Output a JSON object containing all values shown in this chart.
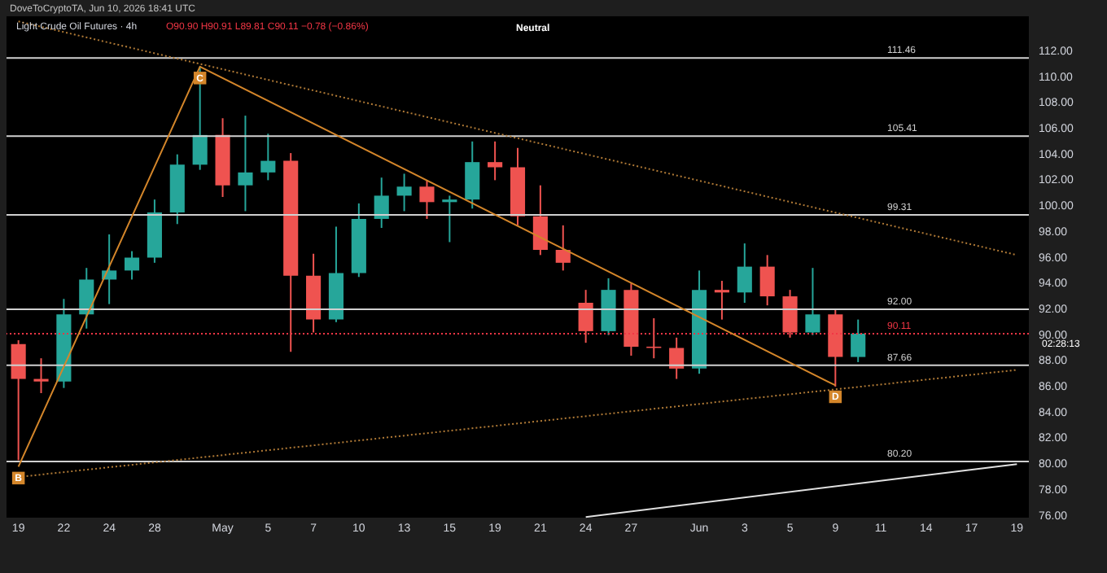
{
  "chart_data": {
    "type": "candlestick",
    "title": "Light Crude Oil Futures · 4h",
    "subtitle": "O90.90 H90.91 L89.81 C90.11 −0.78 (−0.86%)",
    "annotations": [
      "DoveToCryptoTA, Jun 10, 2026 18:41 UTC",
      "Neutral",
      "02:28:13"
    ],
    "categories": [
      "19",
      null,
      "22",
      null,
      "24",
      null,
      "28",
      null,
      null,
      "May",
      null,
      "5",
      null,
      "7",
      null,
      "10",
      null,
      "13",
      null,
      "15",
      null,
      "19",
      null,
      "21",
      null,
      "24",
      null,
      "27",
      null,
      null,
      "Jun",
      null,
      "3",
      null,
      "5",
      null,
      "9",
      null,
      "11",
      null,
      "14",
      null,
      "17",
      null,
      "19"
    ],
    "ohlc": [
      [
        89.3,
        89.6,
        80.3,
        86.6
      ],
      [
        86.6,
        88.2,
        85.5,
        86.4
      ],
      [
        86.4,
        92.8,
        85.9,
        91.6
      ],
      [
        91.6,
        95.2,
        90.5,
        94.3
      ],
      [
        94.3,
        97.8,
        92.4,
        95.0
      ],
      [
        95.0,
        96.5,
        94.3,
        96.0
      ],
      [
        96.0,
        100.5,
        95.6,
        99.5
      ],
      [
        99.5,
        104.0,
        98.6,
        103.2
      ],
      [
        103.2,
        110.8,
        102.8,
        105.5
      ],
      [
        105.5,
        106.8,
        100.7,
        101.6
      ],
      [
        101.6,
        107.0,
        99.6,
        102.6
      ],
      [
        102.6,
        105.6,
        102.0,
        103.5
      ],
      [
        103.5,
        104.1,
        88.7,
        94.6
      ],
      [
        94.6,
        96.3,
        90.2,
        91.2
      ],
      [
        91.2,
        98.4,
        91.0,
        94.8
      ],
      [
        94.8,
        100.2,
        94.5,
        99.0
      ],
      [
        99.0,
        102.2,
        98.3,
        100.8
      ],
      [
        100.8,
        102.5,
        99.6,
        101.5
      ],
      [
        101.5,
        102.0,
        99.0,
        100.3
      ],
      [
        100.3,
        100.8,
        97.2,
        100.5
      ],
      [
        100.5,
        105.0,
        99.8,
        103.4
      ],
      [
        103.4,
        105.0,
        102.0,
        103.0
      ],
      [
        103.0,
        104.5,
        98.5,
        99.2
      ],
      [
        99.2,
        101.6,
        96.2,
        96.6
      ],
      [
        96.6,
        98.5,
        95.0,
        95.6
      ],
      [
        92.5,
        93.5,
        89.4,
        90.3
      ],
      [
        90.3,
        94.4,
        90.0,
        93.5
      ],
      [
        93.5,
        94.0,
        88.4,
        89.1
      ],
      [
        89.1,
        91.3,
        88.2,
        89.0
      ],
      [
        89.0,
        89.8,
        86.6,
        87.4
      ],
      [
        87.4,
        95.0,
        87.0,
        93.5
      ],
      [
        93.5,
        94.2,
        91.2,
        93.3
      ],
      [
        93.3,
        97.1,
        92.5,
        95.3
      ],
      [
        95.3,
        96.2,
        92.3,
        93.0
      ],
      [
        93.0,
        93.5,
        89.8,
        90.2
      ],
      [
        90.2,
        95.2,
        90.0,
        91.6
      ],
      [
        91.6,
        92.0,
        86.0,
        88.3
      ],
      [
        88.3,
        91.2,
        87.9,
        90.11
      ],
      null,
      null,
      null,
      null,
      null,
      null,
      null
    ],
    "series": [
      {
        "type": "line",
        "color": "#b07a36",
        "line_style": "dotted",
        "values": [
          114.3,
          null,
          null,
          null,
          null,
          null,
          null,
          null,
          null,
          null,
          null,
          null,
          null,
          null,
          null,
          null,
          null,
          null,
          null,
          null,
          null,
          null,
          null,
          null,
          null,
          null,
          null,
          null,
          null,
          null,
          null,
          null,
          null,
          null,
          null,
          null,
          null,
          null,
          null,
          null,
          null,
          null,
          null,
          null,
          96.2
        ]
      },
      {
        "type": "line",
        "color": "#b07a36",
        "line_style": "dotted",
        "values": [
          79.0,
          null,
          null,
          null,
          null,
          null,
          null,
          null,
          null,
          null,
          null,
          null,
          null,
          null,
          null,
          null,
          null,
          null,
          null,
          null,
          null,
          null,
          null,
          null,
          null,
          null,
          null,
          null,
          null,
          null,
          null,
          null,
          null,
          null,
          null,
          null,
          null,
          null,
          null,
          null,
          null,
          null,
          null,
          null,
          87.3
        ]
      },
      {
        "type": "line",
        "color": "#d4862a",
        "line_style": "solid",
        "values": [
          79.8,
          null,
          null,
          null,
          null,
          null,
          null,
          null,
          110.8,
          null,
          null,
          null,
          null,
          null,
          null,
          null,
          null,
          null,
          null,
          null,
          null,
          null,
          null,
          null,
          null,
          null,
          null,
          null,
          null,
          null,
          null,
          null,
          null,
          null,
          null,
          null,
          86.1,
          null,
          null,
          null,
          null,
          null,
          null,
          null,
          null
        ],
        "value_labels": [
          "B",
          null,
          null,
          null,
          null,
          null,
          null,
          null,
          "C",
          null,
          null,
          null,
          null,
          null,
          null,
          null,
          null,
          null,
          null,
          null,
          null,
          null,
          null,
          null,
          null,
          null,
          null,
          null,
          null,
          null,
          null,
          null,
          null,
          null,
          null,
          null,
          "D",
          null,
          null,
          null,
          null,
          null,
          null,
          null,
          null
        ]
      },
      {
        "type": "line",
        "color": "#e0e0e0",
        "line_style": "solid",
        "values": [
          null,
          null,
          null,
          null,
          null,
          null,
          null,
          null,
          null,
          null,
          null,
          null,
          null,
          null,
          null,
          null,
          null,
          null,
          null,
          null,
          null,
          null,
          null,
          null,
          null,
          75.9,
          null,
          null,
          null,
          null,
          null,
          null,
          null,
          null,
          null,
          null,
          null,
          null,
          null,
          null,
          null,
          null,
          null,
          null,
          80.0
        ]
      }
    ],
    "ref_lines": [
      {
        "axis": "y",
        "value": 111.46,
        "label": "111.46",
        "color": "#d0d0d0"
      },
      {
        "axis": "y",
        "value": 105.41,
        "label": "105.41",
        "color": "#d0d0d0"
      },
      {
        "axis": "y",
        "value": 99.31,
        "label": "99.31",
        "color": "#d0d0d0"
      },
      {
        "axis": "y",
        "value": 92.0,
        "label": "92.00",
        "color": "#d0d0d0"
      },
      {
        "axis": "y",
        "value": 87.66,
        "label": "87.66",
        "color": "#d0d0d0"
      },
      {
        "axis": "y",
        "value": 80.2,
        "label": "80.20",
        "color": "#d0d0d0"
      },
      {
        "axis": "y",
        "value": 90.11,
        "label": "90.11",
        "color": "#f23645",
        "line_style": "dotted"
      }
    ],
    "ylim": [
      75.85,
      114.7
    ],
    "yticks": [
      {
        "value": 76,
        "label": "76.00"
      },
      {
        "value": 78,
        "label": "78.00"
      },
      {
        "value": 80,
        "label": "80.00"
      },
      {
        "value": 82,
        "label": "82.00"
      },
      {
        "value": 84,
        "label": "84.00"
      },
      {
        "value": 86,
        "label": "86.00"
      },
      {
        "value": 88,
        "label": "88.00"
      },
      {
        "value": 90,
        "label": "90.00"
      },
      {
        "value": 92,
        "label": "92.00"
      },
      {
        "value": 94,
        "label": "94.00"
      },
      {
        "value": 96,
        "label": "96.00"
      },
      {
        "value": 98,
        "label": "98.00"
      },
      {
        "value": 100,
        "label": "100.00"
      },
      {
        "value": 102,
        "label": "102.00"
      },
      {
        "value": 104,
        "label": "104.00"
      },
      {
        "value": 106,
        "label": "106.00"
      },
      {
        "value": 108,
        "label": "108.00"
      },
      {
        "value": 110,
        "label": "110.00"
      },
      {
        "value": 112,
        "label": "112.00"
      }
    ]
  }
}
